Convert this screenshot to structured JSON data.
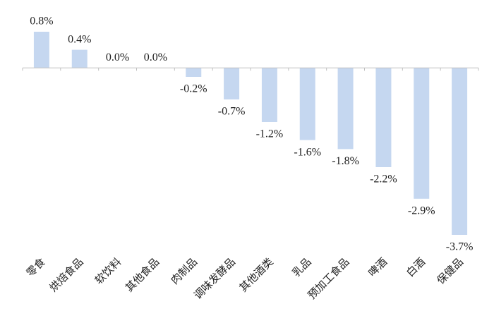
{
  "chart_data": {
    "type": "bar",
    "categories": [
      "零食",
      "烘焙食品",
      "软饮料",
      "其他食品",
      "肉制品",
      "调味发酵品",
      "其他酒类",
      "乳品",
      "预加工食品",
      "啤酒",
      "白酒",
      "保健品"
    ],
    "values": [
      0.8,
      0.4,
      0.0,
      0.0,
      -0.2,
      -0.7,
      -1.2,
      -1.6,
      -1.8,
      -2.2,
      -2.9,
      -3.7
    ],
    "value_labels": [
      "0.8%",
      "0.4%",
      "0.0%",
      "0.0%",
      "-0.2%",
      "-0.7%",
      "-1.2%",
      "-1.6%",
      "-1.8%",
      "-2.2%",
      "-2.9%",
      "-3.7%"
    ],
    "color": "#c5d7f0"
  }
}
